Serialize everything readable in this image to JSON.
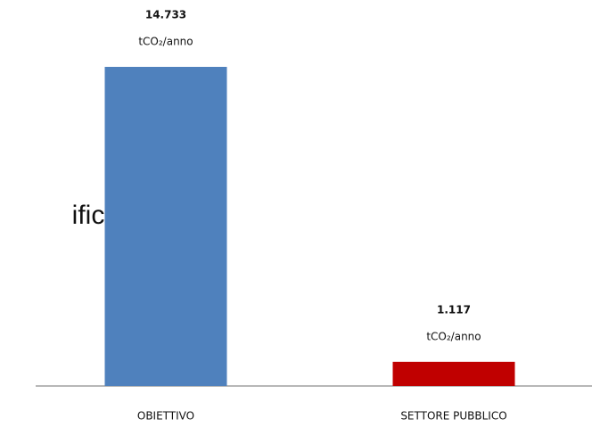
{
  "chart_data": {
    "type": "bar",
    "annotation": "ifici",
    "categories": [
      "OBIETTIVO",
      "SETTORE PUBBLICO"
    ],
    "values": [
      14733,
      1117
    ],
    "value_labels": [
      "14.733",
      "1.117"
    ],
    "value_unit": "tCO₂/anno",
    "colors": [
      "#4f81bd",
      "#c00000"
    ]
  }
}
